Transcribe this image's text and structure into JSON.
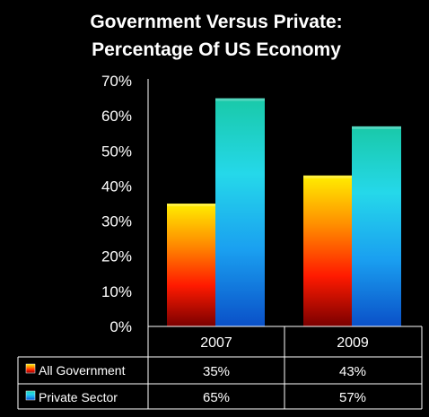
{
  "chart_data": {
    "type": "bar",
    "title_lines": [
      "Government Versus Private:",
      "Percentage Of US  Economy"
    ],
    "categories": [
      "2007",
      "2009"
    ],
    "series": [
      {
        "name": "All Government",
        "values": [
          35,
          43
        ],
        "labels": [
          "35%",
          "43%"
        ],
        "gradient": [
          "#ffee00",
          "#ff8c00",
          "#ff1a00",
          "#7a0000"
        ]
      },
      {
        "name": "Private Sector",
        "values": [
          65,
          57
        ],
        "labels": [
          "65%",
          "57%"
        ],
        "gradient": [
          "#19c9a8",
          "#25d8ea",
          "#1a9ff0",
          "#0a50c8"
        ]
      }
    ],
    "ylim": [
      0,
      70
    ],
    "yticks": [
      0,
      10,
      20,
      30,
      40,
      50,
      60,
      70
    ],
    "ytick_labels": [
      "0%",
      "10%",
      "20%",
      "30%",
      "40%",
      "50%",
      "60%",
      "70%"
    ],
    "xlabel": "",
    "ylabel": "",
    "grid": false,
    "legend_placement": "data-table-left",
    "data_table": true,
    "colors": {
      "background": "#000000",
      "text": "#ffffff",
      "lines": "#ffffff"
    }
  }
}
